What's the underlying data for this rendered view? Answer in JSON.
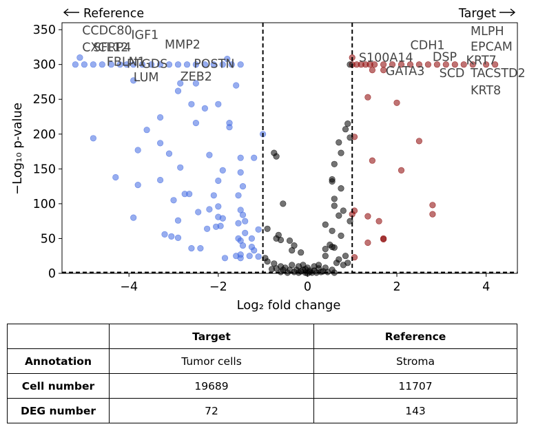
{
  "chart_data": {
    "type": "scatter",
    "xlabel": "Log₂ fold change",
    "ylabel": "−Log₁₀ p-value",
    "xlim": [
      -5.5,
      4.7
    ],
    "ylim": [
      0,
      360
    ],
    "xticks": [
      -4,
      -2,
      0,
      2,
      4
    ],
    "yticks": [
      0,
      50,
      100,
      150,
      200,
      250,
      300,
      350
    ],
    "xtick_labels": [
      "−4",
      "−2",
      "0",
      "2",
      "4"
    ],
    "ytick_labels": [
      "0",
      "50",
      "100",
      "150",
      "200",
      "250",
      "300",
      "350"
    ],
    "fc_thresholds": [
      -1,
      1
    ],
    "pvalue_threshold": 1.3,
    "direction_left": "Reference",
    "direction_right": "Target",
    "colors": {
      "reference": "#4169e1",
      "target": "#8b0000",
      "ns": "#000000"
    },
    "series": [
      {
        "group": "reference",
        "points": [
          [
            -5.2,
            300
          ],
          [
            -5.0,
            300
          ],
          [
            -4.8,
            300
          ],
          [
            -4.6,
            300
          ],
          [
            -4.4,
            300
          ],
          [
            -4.2,
            300
          ],
          [
            -4.05,
            300
          ],
          [
            -3.9,
            300
          ],
          [
            -3.7,
            300
          ],
          [
            -3.5,
            300
          ],
          [
            -3.3,
            300
          ],
          [
            -3.1,
            300
          ],
          [
            -2.9,
            300
          ],
          [
            -2.7,
            300
          ],
          [
            -2.5,
            300
          ],
          [
            -2.3,
            300
          ],
          [
            -2.1,
            300
          ],
          [
            -1.9,
            300
          ],
          [
            -1.7,
            300
          ],
          [
            -1.5,
            300
          ],
          [
            -5.1,
            310
          ],
          [
            -1.8,
            308
          ],
          [
            -3.9,
            277
          ],
          [
            -2.85,
            273
          ],
          [
            -2.5,
            273
          ],
          [
            -2.9,
            262
          ],
          [
            -1.6,
            270
          ],
          [
            -2.6,
            243
          ],
          [
            -2.0,
            243
          ],
          [
            -2.3,
            237
          ],
          [
            -3.3,
            224
          ],
          [
            -2.5,
            216
          ],
          [
            -1.75,
            216
          ],
          [
            -1.75,
            210
          ],
          [
            -4.8,
            194
          ],
          [
            -3.6,
            206
          ],
          [
            -3.3,
            187
          ],
          [
            -1.0,
            200
          ],
          [
            -3.8,
            177
          ],
          [
            -3.1,
            172
          ],
          [
            -2.2,
            170
          ],
          [
            -1.5,
            166
          ],
          [
            -1.2,
            166
          ],
          [
            -2.85,
            152
          ],
          [
            -1.9,
            148
          ],
          [
            -1.5,
            145
          ],
          [
            -4.3,
            138
          ],
          [
            -3.3,
            134
          ],
          [
            -2.0,
            133
          ],
          [
            -3.8,
            127
          ],
          [
            -1.45,
            125
          ],
          [
            -2.75,
            114
          ],
          [
            -2.65,
            114
          ],
          [
            -2.1,
            112
          ],
          [
            -1.55,
            112
          ],
          [
            -3.0,
            105
          ],
          [
            -2.0,
            96
          ],
          [
            -2.2,
            92
          ],
          [
            -1.5,
            91
          ],
          [
            -2.45,
            88
          ],
          [
            -1.45,
            84
          ],
          [
            -3.9,
            80
          ],
          [
            -2.0,
            81
          ],
          [
            -1.9,
            79
          ],
          [
            -2.9,
            76
          ],
          [
            -1.4,
            75
          ],
          [
            -1.55,
            72
          ],
          [
            -1.95,
            68
          ],
          [
            -2.05,
            67
          ],
          [
            -2.25,
            64
          ],
          [
            -1.1,
            63
          ],
          [
            -1.4,
            58
          ],
          [
            -3.2,
            56
          ],
          [
            -3.05,
            53
          ],
          [
            -2.9,
            51
          ],
          [
            -1.55,
            50
          ],
          [
            -1.25,
            50
          ],
          [
            -1.5,
            47
          ],
          [
            -2.6,
            36
          ],
          [
            -2.4,
            36
          ],
          [
            -1.45,
            40
          ],
          [
            -1.25,
            38
          ],
          [
            -1.2,
            33
          ],
          [
            -1.5,
            27
          ],
          [
            -1.6,
            25
          ],
          [
            -1.3,
            25
          ],
          [
            -1.5,
            22
          ],
          [
            -1.85,
            22
          ],
          [
            -1.1,
            24
          ]
        ]
      },
      {
        "group": "target",
        "points": [
          [
            1.0,
            300
          ],
          [
            1.1,
            300
          ],
          [
            1.2,
            300
          ],
          [
            1.3,
            300
          ],
          [
            1.4,
            300
          ],
          [
            1.5,
            300
          ],
          [
            1.7,
            300
          ],
          [
            1.9,
            300
          ],
          [
            2.1,
            300
          ],
          [
            2.3,
            300
          ],
          [
            2.5,
            300
          ],
          [
            2.7,
            300
          ],
          [
            2.9,
            300
          ],
          [
            3.1,
            300
          ],
          [
            3.3,
            300
          ],
          [
            3.5,
            300
          ],
          [
            3.7,
            300
          ],
          [
            4.0,
            300
          ],
          [
            4.2,
            300
          ],
          [
            1.0,
            310
          ],
          [
            1.45,
            292
          ],
          [
            1.7,
            292
          ],
          [
            1.35,
            253
          ],
          [
            2.0,
            245
          ],
          [
            1.05,
            196
          ],
          [
            2.5,
            190
          ],
          [
            1.45,
            162
          ],
          [
            2.1,
            148
          ],
          [
            1.05,
            90
          ],
          [
            2.8,
            98
          ],
          [
            1.0,
            85
          ],
          [
            2.8,
            85
          ],
          [
            1.35,
            82
          ],
          [
            1.6,
            75
          ],
          [
            1.7,
            50
          ],
          [
            1.7,
            49
          ],
          [
            1.35,
            44
          ],
          [
            1.05,
            23
          ]
        ]
      },
      {
        "group": "not-significant",
        "points": [
          [
            0.95,
            300
          ],
          [
            0.9,
            215
          ],
          [
            0.85,
            207
          ],
          [
            0.95,
            195
          ],
          [
            0.7,
            188
          ],
          [
            0.75,
            173
          ],
          [
            -0.75,
            173
          ],
          [
            -0.7,
            168
          ],
          [
            0.6,
            157
          ],
          [
            0.55,
            135
          ],
          [
            0.55,
            132
          ],
          [
            0.75,
            122
          ],
          [
            0.6,
            107
          ],
          [
            0.6,
            97
          ],
          [
            -0.55,
            100
          ],
          [
            0.8,
            90
          ],
          [
            0.7,
            83
          ],
          [
            0.95,
            75
          ],
          [
            0.4,
            70
          ],
          [
            0.55,
            61
          ],
          [
            0.75,
            54
          ],
          [
            -0.9,
            64
          ],
          [
            -0.65,
            55
          ],
          [
            -0.7,
            50
          ],
          [
            -0.6,
            48
          ],
          [
            0.5,
            41
          ],
          [
            0.55,
            38
          ],
          [
            0.6,
            37
          ],
          [
            0.4,
            35
          ],
          [
            -0.4,
            47
          ],
          [
            -0.3,
            40
          ],
          [
            -0.35,
            33
          ],
          [
            -0.15,
            30
          ],
          [
            0.4,
            25
          ],
          [
            0.85,
            25
          ],
          [
            0.7,
            20
          ],
          [
            0.65,
            15
          ],
          [
            0.8,
            12
          ],
          [
            -0.95,
            22
          ],
          [
            -0.9,
            17
          ],
          [
            -0.75,
            14
          ],
          [
            -0.6,
            10
          ],
          [
            -0.5,
            8
          ],
          [
            -0.35,
            12
          ],
          [
            -0.2,
            10
          ],
          [
            -0.1,
            12
          ],
          [
            -0.7,
            7
          ],
          [
            -0.55,
            5
          ],
          [
            -0.4,
            5
          ],
          [
            -0.25,
            5
          ],
          [
            -0.1,
            5
          ],
          [
            0.05,
            4
          ],
          [
            0.15,
            10
          ],
          [
            0.25,
            7
          ],
          [
            0.35,
            3
          ],
          [
            0.45,
            2
          ],
          [
            0.55,
            5
          ],
          [
            0.0,
            0
          ],
          [
            -0.05,
            1
          ],
          [
            0.1,
            1
          ],
          [
            0.2,
            1
          ],
          [
            -0.2,
            1
          ],
          [
            0.3,
            2
          ],
          [
            -0.3,
            2
          ],
          [
            0.15,
            4
          ],
          [
            -0.15,
            3
          ],
          [
            0.05,
            2
          ],
          [
            -0.45,
            1
          ],
          [
            0.4,
            8
          ],
          [
            -0.8,
            6
          ],
          [
            0.9,
            15
          ],
          [
            -0.05,
            6
          ],
          [
            0.25,
            12
          ],
          [
            -0.6,
            2
          ],
          [
            0.6,
            1
          ],
          [
            0.0,
            8
          ]
        ]
      }
    ],
    "annotations": [
      {
        "text": "CCDC80",
        "x": -5.05,
        "y": 343
      },
      {
        "text": "CXCL12",
        "x": -5.05,
        "y": 319
      },
      {
        "text": "SFRP4",
        "x": -4.8,
        "y": 319
      },
      {
        "text": "IGF1",
        "x": -3.95,
        "y": 337
      },
      {
        "text": "MMP2",
        "x": -3.2,
        "y": 323
      },
      {
        "text": "FBLN1",
        "x": -4.5,
        "y": 298
      },
      {
        "text": "PTGDS",
        "x": -4.05,
        "y": 295
      },
      {
        "text": "POSTN",
        "x": -2.55,
        "y": 295
      },
      {
        "text": "LUM",
        "x": -3.9,
        "y": 276
      },
      {
        "text": "ZEB2",
        "x": -2.85,
        "y": 277
      },
      {
        "text": "CDH1",
        "x": 2.3,
        "y": 322
      },
      {
        "text": "S100A14",
        "x": 1.15,
        "y": 304
      },
      {
        "text": "DSP",
        "x": 2.8,
        "y": 305
      },
      {
        "text": "MLPH",
        "x": 3.65,
        "y": 342
      },
      {
        "text": "EPCAM",
        "x": 3.65,
        "y": 320
      },
      {
        "text": "KRT7",
        "x": 3.55,
        "y": 300
      },
      {
        "text": "GATA3",
        "x": 1.75,
        "y": 285
      },
      {
        "text": "SCD",
        "x": 2.95,
        "y": 282
      },
      {
        "text": "TACSTD2",
        "x": 3.65,
        "y": 282
      },
      {
        "text": "KRT8",
        "x": 3.65,
        "y": 257
      }
    ]
  },
  "table": {
    "headers": [
      "",
      "Target",
      "Reference"
    ],
    "rows": [
      {
        "label": "Annotation",
        "target": "Tumor cells",
        "reference": "Stroma"
      },
      {
        "label": "Cell number",
        "target": "19689",
        "reference": "11707"
      },
      {
        "label": "DEG number",
        "target": "72",
        "reference": "143"
      }
    ]
  }
}
